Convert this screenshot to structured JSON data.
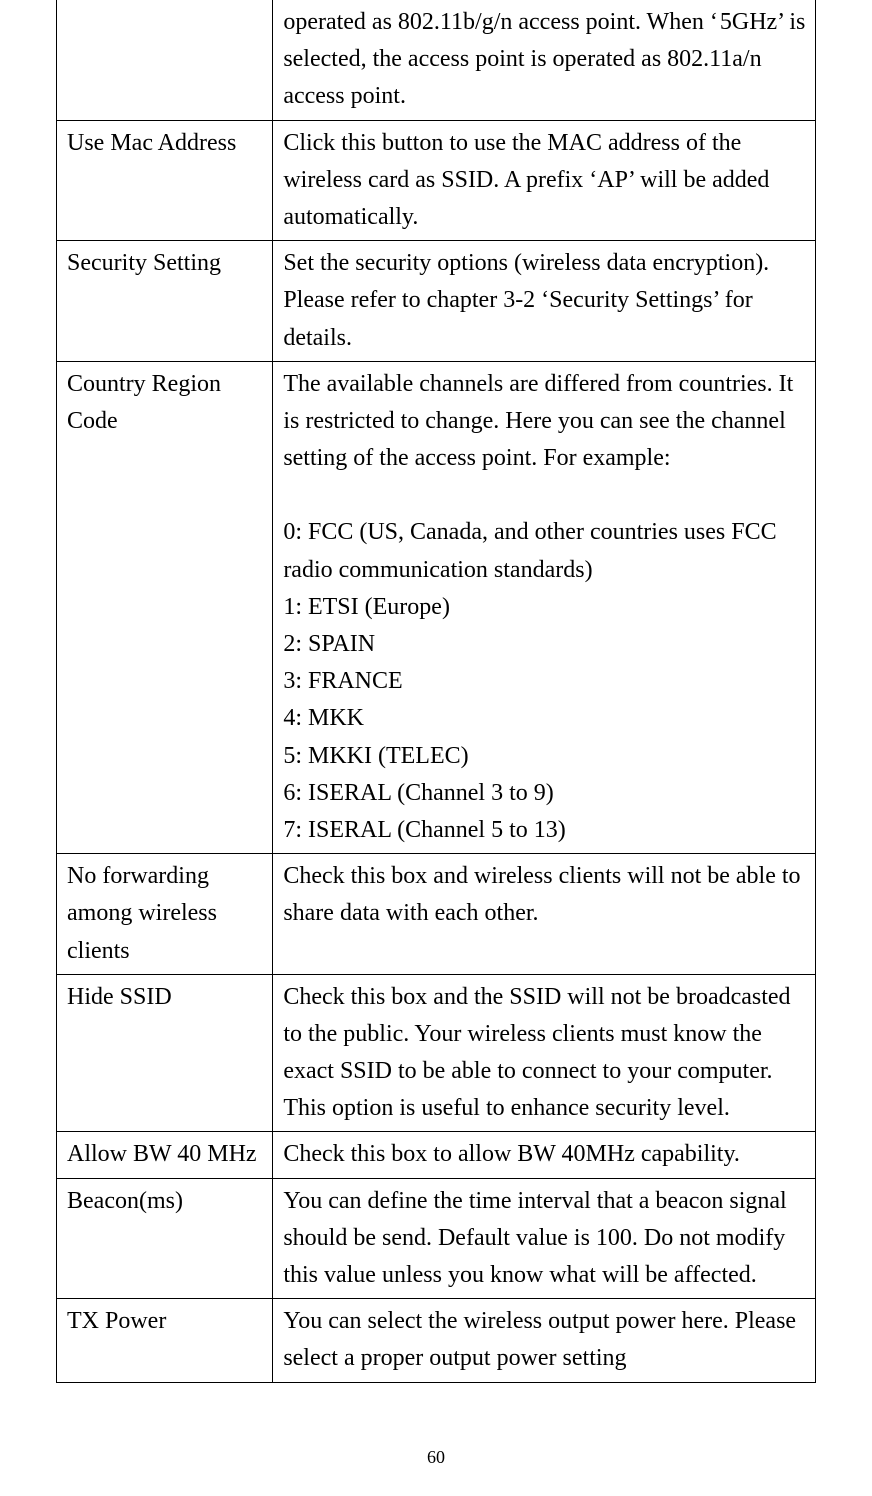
{
  "page_number": "60",
  "table": {
    "column_widths_pct": [
      28.5,
      71.5
    ],
    "border_color": "#000000",
    "font_family": "Times New Roman",
    "font_size_pt": 18,
    "rows": [
      {
        "left": "",
        "right": "operated as 802.11b/g/n access point. When ‘ 5GHz’ is selected, the access point is operated as 802.11a/n access point."
      },
      {
        "left": "Use Mac Address",
        "right": "Click this button to use the MAC address of the wireless card as SSID. A prefix ‘AP’ will be added automatically."
      },
      {
        "left": "Security Setting",
        "right": "Set the security options (wireless data encryption). Please refer to chapter 3-2 ‘Security Settings’ for details."
      },
      {
        "left": "Country Region Code",
        "right": "The available channels are differed from countries. It is restricted to change. Here you can see the channel setting of the access point. For example:\n\n0: FCC (US, Canada, and other countries uses FCC radio communication standards)\n1: ETSI (Europe)\n2: SPAIN\n3: FRANCE\n4: MKK\n5: MKKI (TELEC)\n6: ISERAL (Channel 3 to 9)\n7: ISERAL (Channel 5 to 13)"
      },
      {
        "left": "No forwarding among wireless clients",
        "right": "Check this box and wireless clients will not be able to share data with each other."
      },
      {
        "left": "Hide SSID",
        "right": "Check this box and the SSID will not be broadcasted to the public. Your wireless clients must know the exact SSID to be able to connect to your computer. This option is useful to enhance security level."
      },
      {
        "left": "Allow BW 40 MHz",
        "right": "Check this box to allow BW 40MHz capability."
      },
      {
        "left": "Beacon(ms)",
        "right": "You can define the time interval that a beacon signal should be send. Default value is 100. Do not modify this value unless you know what will be affected."
      },
      {
        "left": "TX Power",
        "right": "You can select the wireless output power here. Please select a proper output power setting"
      }
    ]
  }
}
